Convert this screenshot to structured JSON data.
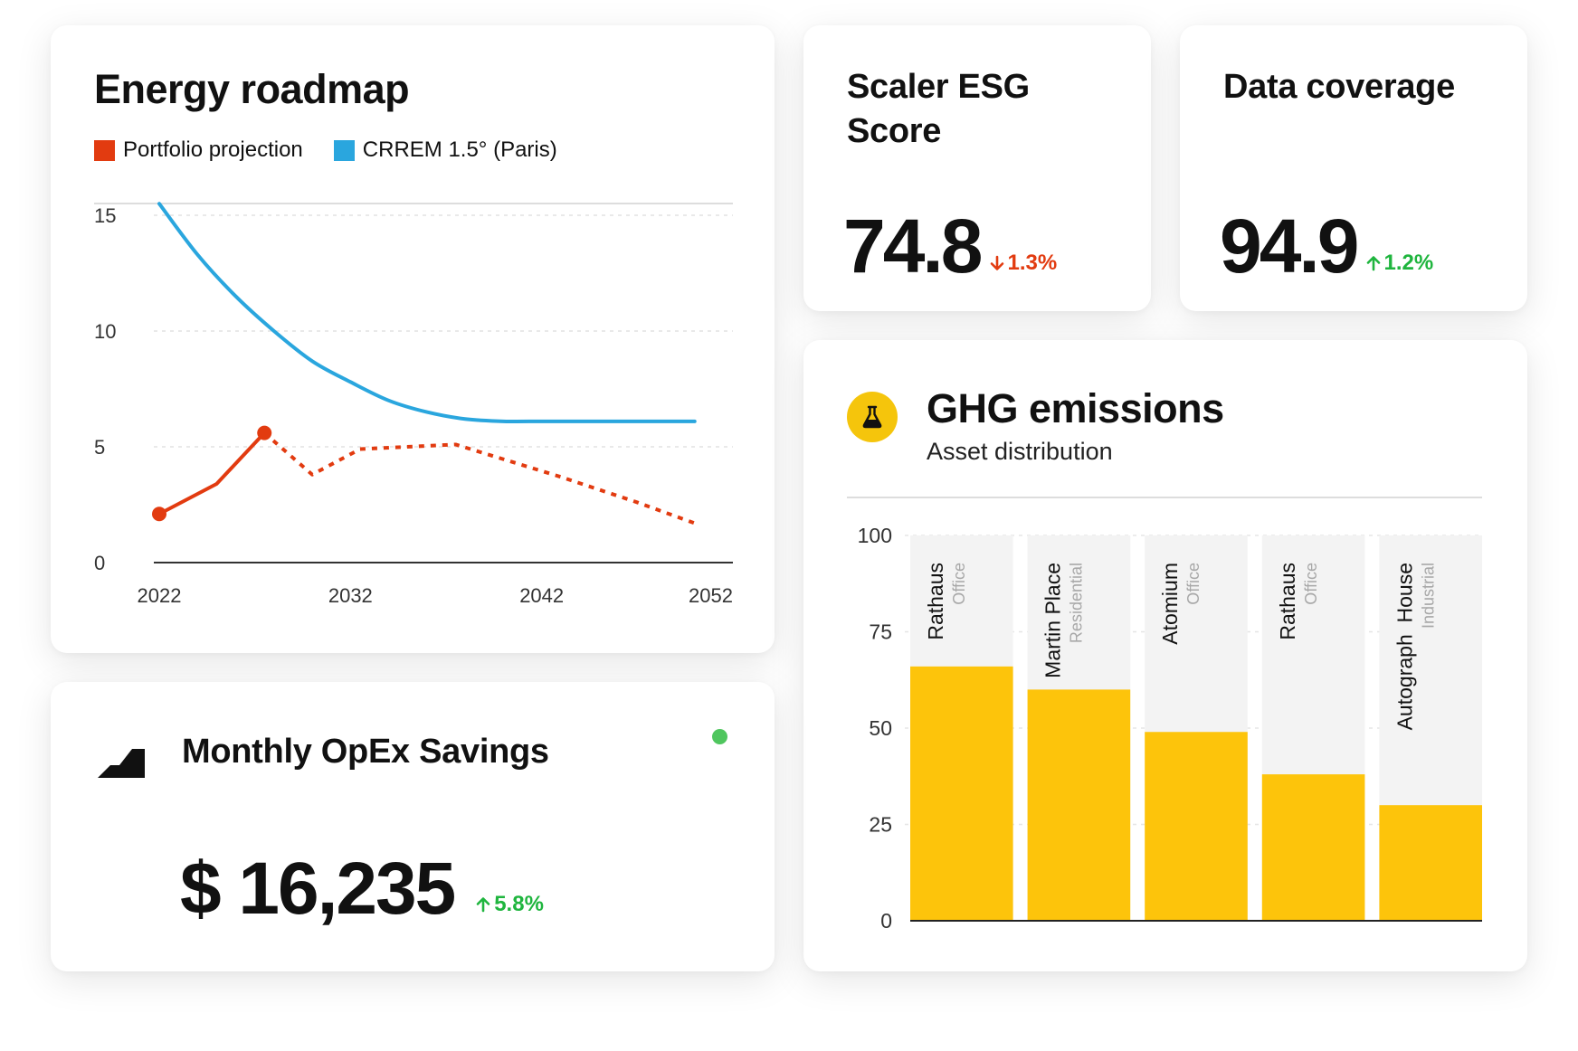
{
  "energy": {
    "title": "Energy roadmap",
    "legend": [
      {
        "label": "Portfolio projection",
        "color": "#e23b10"
      },
      {
        "label": "CRREM 1.5° (Paris)",
        "color": "#2aa6de"
      }
    ],
    "chart_data": {
      "type": "line",
      "title": "Energy roadmap",
      "xlim": [
        2022,
        2052
      ],
      "ylim": [
        0,
        17.5
      ],
      "x_ticks": [
        "2022",
        "2032",
        "2042",
        "2052"
      ],
      "y_ticks": [
        "0",
        "5",
        "10",
        "15"
      ],
      "grid": "horizontal dashed",
      "legend_position": "top-left",
      "series": [
        {
          "name": "CRREM 1.5° (Paris)",
          "color": "#2aa6de",
          "style": "solid",
          "points": [
            [
              2022,
              15.5
            ],
            [
              2024,
              13.3
            ],
            [
              2026,
              11.5
            ],
            [
              2028,
              10.0
            ],
            [
              2030,
              8.7
            ],
            [
              2032,
              7.8
            ],
            [
              2034,
              7.0
            ],
            [
              2036,
              6.5
            ],
            [
              2038,
              6.2
            ],
            [
              2040,
              6.1
            ],
            [
              2042,
              6.1
            ],
            [
              2044,
              6.1
            ],
            [
              2046,
              6.1
            ],
            [
              2048,
              6.1
            ],
            [
              2050,
              6.1
            ]
          ]
        },
        {
          "name": "Portfolio projection",
          "color": "#e23b10",
          "style": "solid",
          "points": [
            [
              2022,
              2.1
            ],
            [
              2025,
              3.4
            ],
            [
              2027.5,
              5.6
            ]
          ]
        },
        {
          "name": "Portfolio projection",
          "color": "#e23b10",
          "style": "dotted",
          "points": [
            [
              2027.5,
              5.6
            ],
            [
              2030,
              3.8
            ],
            [
              2032.5,
              4.9
            ],
            [
              2037.5,
              5.1
            ],
            [
              2043,
              3.7
            ],
            [
              2047,
              2.6
            ],
            [
              2050,
              1.7
            ]
          ]
        }
      ],
      "markers": [
        [
          2022,
          2.1
        ],
        [
          2027.5,
          5.6
        ]
      ]
    }
  },
  "esg": {
    "title": "Scaler ESG Score",
    "value": "74.8",
    "delta": "1.3%",
    "direction": "down"
  },
  "coverage": {
    "title": "Data coverage",
    "value": "94.9",
    "delta": "1.2%",
    "direction": "up"
  },
  "ghg": {
    "title": "GHG emissions",
    "subtitle": "Asset distribution",
    "icon": "flask-icon",
    "chart_data": {
      "type": "bar",
      "ylim": [
        0,
        100
      ],
      "y_ticks": [
        "0",
        "25",
        "50",
        "75",
        "100"
      ],
      "bar_color": "#fdc40b",
      "background_color": "#f3f3f3",
      "grid": "horizontal dashed",
      "categories": [
        {
          "name": "Rathaus",
          "type": "Office"
        },
        {
          "name": "Martin Place",
          "type": "Residential"
        },
        {
          "name": "Atomium",
          "type": "Office"
        },
        {
          "name": "Rathaus",
          "type": "Office"
        },
        {
          "name": "Autograph  House",
          "type": "Industrial"
        }
      ],
      "values": [
        66,
        60,
        49,
        38,
        30
      ]
    }
  },
  "opex": {
    "title": "Monthly OpEx Savings",
    "value": "$ 16,235",
    "delta": "5.8%",
    "direction": "up",
    "status_color": "#4fc65e"
  }
}
